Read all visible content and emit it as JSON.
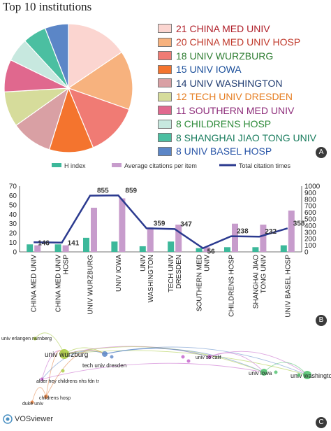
{
  "panel_a": {
    "title": "Top 10 institutions",
    "badge": "A",
    "items": [
      {
        "label": "21 CHINA MED UNIV",
        "value": 21,
        "color": "#fbd5d0",
        "text_color": "#b0202a"
      },
      {
        "label": "20 CHINA MED UNIV HOSP",
        "value": 20,
        "color": "#f7b27e",
        "text_color": "#c0392b"
      },
      {
        "label": "18 UNIV WURZBURG",
        "value": 18,
        "color": "#f07b74",
        "text_color": "#2e7d32"
      },
      {
        "label": "15 UNIV IOWA",
        "value": 15,
        "color": "#f4742e",
        "text_color": "#1a4e9a"
      },
      {
        "label": "14 UNIV WASHINGTON",
        "value": 14,
        "color": "#d9a0a4",
        "text_color": "#1f3b70"
      },
      {
        "label": "12 TECH UNIV DRESDEN",
        "value": 12,
        "color": "#d6dc9b",
        "text_color": "#e67e22"
      },
      {
        "label": "11 SOUTHERN MED UNIV",
        "value": 11,
        "color": "#e0688e",
        "text_color": "#8e2c7a"
      },
      {
        "label": "8 CHILDRENS HOSP",
        "value": 8,
        "color": "#c7e8df",
        "text_color": "#2e8b3a"
      },
      {
        "label": "8 SHANGHAI JIAO TONG UNIV",
        "value": 8,
        "color": "#4bbfa1",
        "text_color": "#1a7d5e"
      },
      {
        "label": "8 UNIV BASEL HOSP",
        "value": 8,
        "color": "#5b86c7",
        "text_color": "#2a56a8"
      }
    ]
  },
  "chart_data": [
    {
      "type": "pie",
      "title": "Top 10 institutions",
      "categories": [
        "CHINA MED UNIV",
        "CHINA MED UNIV HOSP",
        "UNIV WURZBURG",
        "UNIV IOWA",
        "UNIV WASHINGTON",
        "TECH UNIV DRESDEN",
        "SOUTHERN MED UNIV",
        "CHILDRENS HOSP",
        "SHANGHAI JIAO TONG UNIV",
        "UNIV BASEL HOSP"
      ],
      "values": [
        21,
        20,
        18,
        15,
        14,
        12,
        11,
        8,
        8,
        8
      ]
    },
    {
      "type": "bar",
      "categories": [
        "CHINA MED UNIV",
        "CHINA MED UNIV HOSP",
        "UNIV WURZBURG",
        "UNIV IOWA",
        "UNIV WASHINGTON",
        "TECH UNIV DRESDEN",
        "SOUTHERN MED UNIV",
        "CHILDRENS HOSP",
        "SHANGHAI JIAO TONG UNIV",
        "UNIV BASEL HOSP"
      ],
      "series": [
        {
          "name": "H index",
          "axis": "left",
          "type": "bar",
          "color": "#3cb89a",
          "values": [
            8,
            8,
            15,
            11,
            6,
            11,
            4,
            5,
            5,
            7
          ]
        },
        {
          "name": "Average citations per item",
          "axis": "left",
          "type": "bar",
          "color": "#c79ccc",
          "values": [
            7,
            7,
            47,
            57,
            26,
            29,
            5,
            30,
            29,
            44
          ]
        },
        {
          "name": "Total citation times",
          "axis": "right",
          "type": "line",
          "color": "#2b3a8f",
          "values": [
            146,
            141,
            855,
            859,
            359,
            347,
            56,
            238,
            232,
            358
          ]
        }
      ],
      "ylim_left": [
        0,
        70
      ],
      "yticks_left": [
        0,
        10,
        20,
        30,
        40,
        50,
        60,
        70
      ],
      "ylim_right": [
        0,
        1000
      ],
      "yticks_right": [
        0,
        100,
        200,
        300,
        400,
        500,
        600,
        700,
        800,
        900,
        1000
      ],
      "legend_position": "top"
    }
  ],
  "panel_b": {
    "badge": "B",
    "category_labels": [
      [
        "CHINA MED UNIV"
      ],
      [
        "CHINA MED UNIV",
        "HOSP"
      ],
      [
        "UNIV WURZBURG"
      ],
      [
        "UNIV IOWA"
      ],
      [
        "UNIV",
        "WASHINGTON"
      ],
      [
        "TECH UNIV",
        "DRESDEN"
      ],
      [
        "SOUTHERN MED",
        "UNIV"
      ],
      [
        "CHILDRENS HOSP"
      ],
      [
        "SHANGHAI JIAO",
        "TONG UNIV"
      ],
      [
        "UNIV BASEL HOSP"
      ]
    ],
    "line_labels": [
      "146",
      "141",
      "855",
      "859",
      "359",
      "347",
      "56",
      "238",
      "232",
      "358"
    ]
  },
  "panel_c": {
    "badge": "C",
    "logo_text": "VOSviewer",
    "nodes": [
      {
        "label": "univ erlangen nurnberg",
        "color": "#a6c93a"
      },
      {
        "label": "univ wurzburg",
        "color": "#a6c93a"
      },
      {
        "label": "tech univ dresden",
        "color": "#5b86c7"
      },
      {
        "label": "univ so calif",
        "color": "#c25ec9"
      },
      {
        "label": "alder hey childrens nhs fdn tr",
        "color": "#c25ec9"
      },
      {
        "label": "childrens hosp",
        "color": "#e07b3a"
      },
      {
        "label": "duke univ",
        "color": "#e07b3a"
      },
      {
        "label": "univ iowa",
        "color": "#4bbf6a"
      },
      {
        "label": "univ washington",
        "color": "#4bbf6a"
      }
    ]
  }
}
